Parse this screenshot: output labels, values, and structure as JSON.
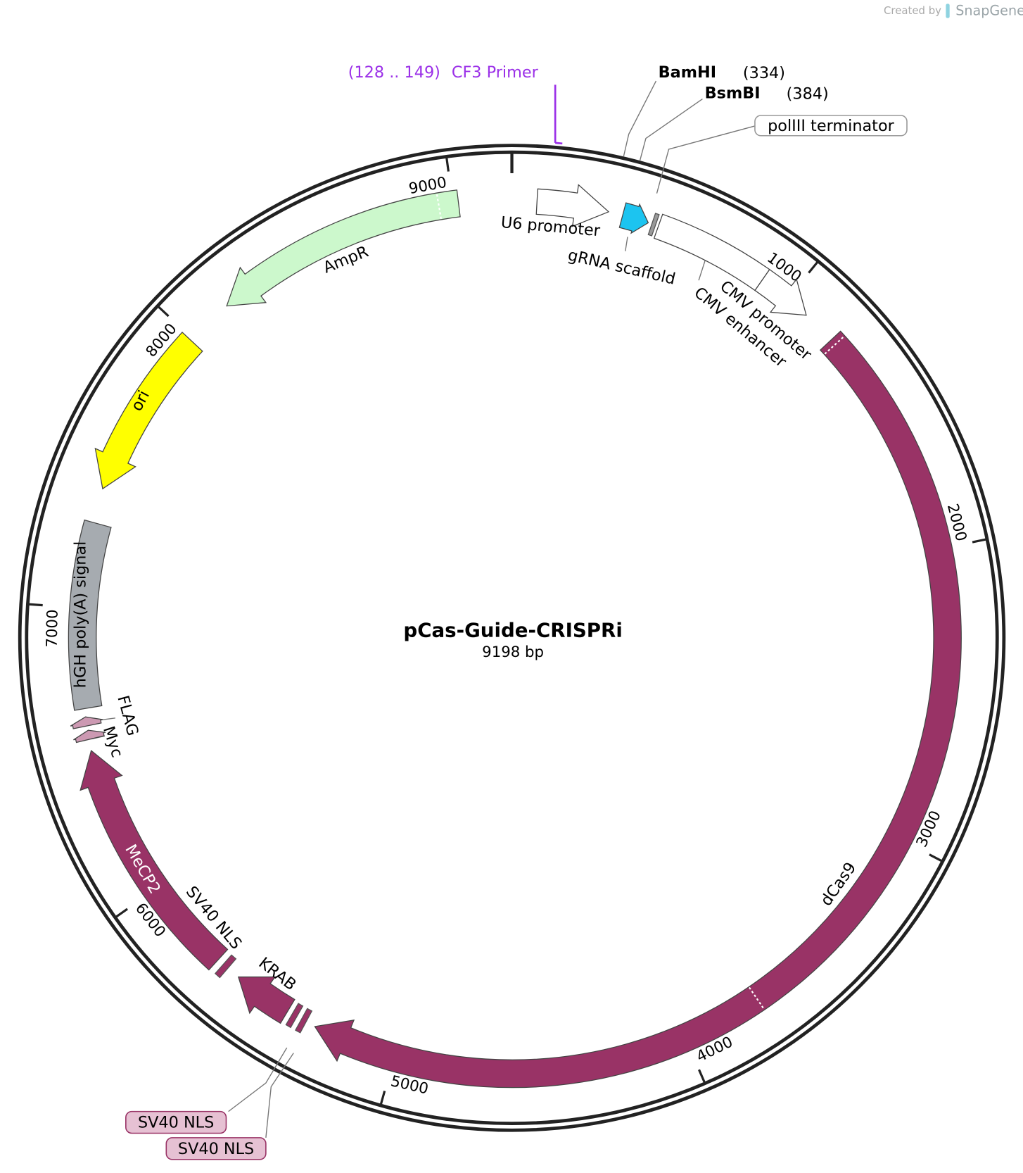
{
  "header": {
    "created_by": "Created by",
    "brand": "SnapGene"
  },
  "map": {
    "name": "pCas-Guide-CRISPRi",
    "length": {
      "value": 9198,
      "label": "9198 bp"
    },
    "ticks": [
      1000,
      2000,
      3000,
      4000,
      5000,
      6000,
      7000,
      8000,
      9000
    ],
    "primer": {
      "start": 128,
      "end": 149,
      "range": "(128 .. 149)",
      "name": "CF3 Primer"
    },
    "sites": [
      {
        "name": "BamHI",
        "position": {
          "value": 334,
          "label": "(334)"
        }
      },
      {
        "name": "BsmBI",
        "position": {
          "value": 384,
          "label": "(384)"
        }
      }
    ],
    "features": [
      {
        "name": "U6 promoter",
        "color": "#ffffff"
      },
      {
        "name": "gRNA scaffold",
        "color": "#1cc4f0"
      },
      {
        "name": "polIII terminator",
        "color": "#999999"
      },
      {
        "name": "CMV enhancer",
        "color": "#ffffff"
      },
      {
        "name": "CMV promoter",
        "color": "#ffffff"
      },
      {
        "name": "dCas9",
        "color": "#993366"
      },
      {
        "name": "SV40 NLS",
        "color": "#993366"
      },
      {
        "name": "SV40 NLS",
        "color": "#993366"
      },
      {
        "name": "KRAB",
        "color": "#993366"
      },
      {
        "name": "SV40 NLS",
        "color": "#993366"
      },
      {
        "name": "MeCP2",
        "color": "#993366"
      },
      {
        "name": "Myc",
        "color": "#cc99b2"
      },
      {
        "name": "FLAG",
        "color": "#cc99b2"
      },
      {
        "name": "hGH poly(A) signal",
        "color": "#a6abb0"
      },
      {
        "name": "ori",
        "color": "#ffff00"
      },
      {
        "name": "AmpR",
        "color": "#ccf8cc"
      }
    ]
  }
}
